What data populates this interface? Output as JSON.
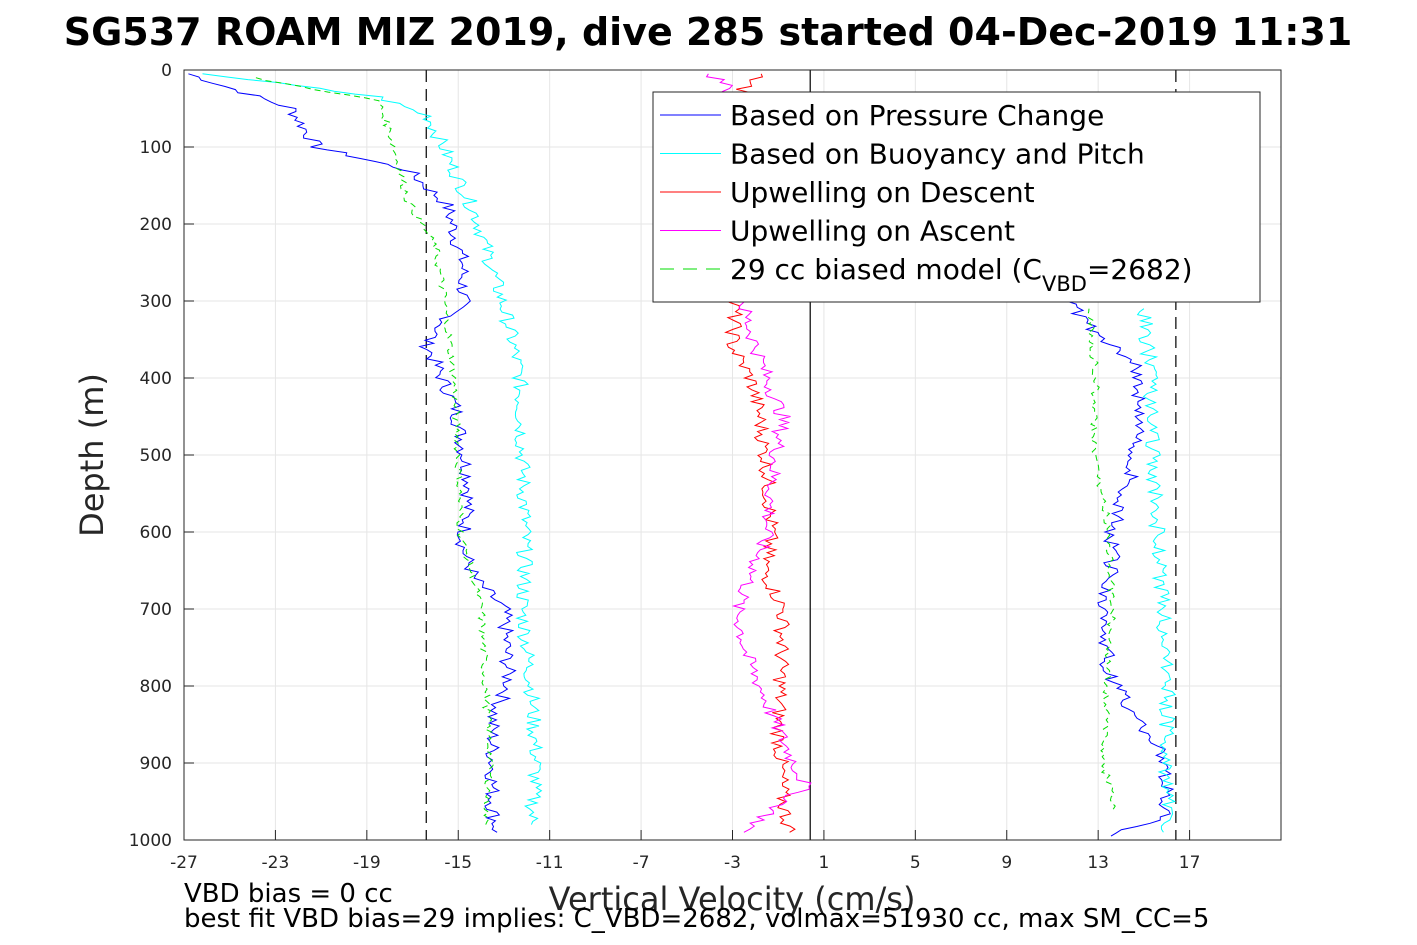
{
  "chart_data": {
    "type": "line",
    "title": "SG537 ROAM MIZ 2019, dive 285 started 04-Dec-2019 11:31",
    "xlabel": "Vertical Velocity (cm/s)",
    "ylabel": "Depth (m)",
    "xlim": [
      -27,
      21
    ],
    "ylim": [
      0,
      1000
    ],
    "y_reversed": true,
    "x_ticks": [
      "-27",
      "-23",
      "-19",
      "-15",
      "-11",
      "-7",
      "-3",
      "1",
      "5",
      "9",
      "13",
      "17"
    ],
    "y_ticks": [
      "0",
      "100",
      "200",
      "300",
      "400",
      "500",
      "600",
      "700",
      "800",
      "900",
      "1000"
    ],
    "grid": true,
    "legend_position": "top-right",
    "reference_lines": [
      {
        "x": -16.4,
        "style": "dashed",
        "color": "#000000"
      },
      {
        "x": 0.4,
        "style": "solid",
        "color": "#000000"
      },
      {
        "x": 16.4,
        "style": "dashed",
        "color": "#000000"
      }
    ],
    "series": [
      {
        "name": "Based on Pressure Change",
        "color": "#0000ff",
        "style": "solid",
        "descent": [
          [
            -26.8,
            5
          ],
          [
            -22.3,
            50
          ],
          [
            -21.2,
            100
          ],
          [
            -17.2,
            130
          ],
          [
            -15.5,
            175
          ],
          [
            -14.8,
            250
          ],
          [
            -14.8,
            300
          ],
          [
            -16.4,
            355
          ],
          [
            -15.1,
            440
          ],
          [
            -14.5,
            540
          ],
          [
            -14.8,
            620
          ],
          [
            -14.3,
            660
          ],
          [
            -13.0,
            700
          ],
          [
            -12.8,
            800
          ],
          [
            -13.5,
            840
          ],
          [
            -13.5,
            960
          ],
          [
            -13.3,
            990
          ]
        ],
        "ascent": [
          [
            13.4,
            995
          ],
          [
            15.8,
            970
          ],
          [
            16.0,
            950
          ],
          [
            15.8,
            890
          ],
          [
            14.4,
            830
          ],
          [
            13.4,
            780
          ],
          [
            13.3,
            700
          ],
          [
            13.6,
            640
          ],
          [
            13.6,
            600
          ],
          [
            14.5,
            520
          ],
          [
            14.8,
            450
          ],
          [
            14.7,
            380
          ],
          [
            13.1,
            345
          ],
          [
            11.6,
            300
          ]
        ]
      },
      {
        "name": "Based on Buoyancy and Pitch",
        "color": "#00ffff",
        "style": "solid",
        "descent": [
          [
            -26.0,
            5
          ],
          [
            -18.5,
            35
          ],
          [
            -16.3,
            60
          ],
          [
            -15.5,
            110
          ],
          [
            -14.2,
            190
          ],
          [
            -13.5,
            260
          ],
          [
            -12.8,
            330
          ],
          [
            -12.3,
            400
          ],
          [
            -12.2,
            500
          ],
          [
            -12.1,
            580
          ],
          [
            -12.1,
            650
          ],
          [
            -12.2,
            700
          ],
          [
            -11.8,
            800
          ],
          [
            -11.6,
            900
          ],
          [
            -11.8,
            980
          ]
        ],
        "ascent": [
          [
            16.0,
            990
          ],
          [
            16.1,
            950
          ],
          [
            15.9,
            900
          ],
          [
            16.0,
            850
          ],
          [
            16.1,
            780
          ],
          [
            15.8,
            700
          ],
          [
            15.6,
            600
          ],
          [
            15.4,
            500
          ],
          [
            15.3,
            400
          ],
          [
            15.0,
            310
          ]
        ]
      },
      {
        "name": "Upwelling on Descent",
        "color": "#ff0000",
        "style": "solid",
        "descent": [
          [
            -1.5,
            5
          ],
          [
            -2.5,
            25
          ],
          [
            -3.8,
            190
          ],
          [
            -2.9,
            310
          ],
          [
            -3.0,
            360
          ],
          [
            -2.2,
            400
          ],
          [
            -1.8,
            450
          ],
          [
            -1.5,
            520
          ],
          [
            -1.3,
            600
          ],
          [
            -1.6,
            650
          ],
          [
            -0.8,
            700
          ],
          [
            -0.9,
            800
          ],
          [
            -1.0,
            850
          ],
          [
            -0.8,
            950
          ],
          [
            -0.5,
            990
          ]
        ]
      },
      {
        "name": "Upwelling on Ascent",
        "color": "#ff00ff",
        "style": "solid",
        "ascent": [
          [
            -4.0,
            5
          ],
          [
            -3.2,
            20
          ],
          [
            -2.5,
            310
          ],
          [
            -2.2,
            340
          ],
          [
            -1.5,
            400
          ],
          [
            -0.8,
            450
          ],
          [
            -1.2,
            520
          ],
          [
            -1.5,
            600
          ],
          [
            -2.1,
            650
          ],
          [
            -2.8,
            700
          ],
          [
            -2.4,
            760
          ],
          [
            -1.8,
            800
          ],
          [
            -0.8,
            870
          ],
          [
            0.2,
            930
          ],
          [
            -2.5,
            990
          ]
        ]
      },
      {
        "name": "29 cc biased model (C_VBD=2682)",
        "color": "#00dd00",
        "style": "dashed",
        "descent": [
          [
            -24.0,
            10
          ],
          [
            -18.5,
            40
          ],
          [
            -18.0,
            80
          ],
          [
            -17.2,
            170
          ],
          [
            -16.0,
            230
          ],
          [
            -15.6,
            300
          ],
          [
            -15.2,
            400
          ],
          [
            -15.0,
            500
          ],
          [
            -14.9,
            600
          ],
          [
            -14.0,
            700
          ],
          [
            -13.8,
            800
          ],
          [
            -13.6,
            900
          ],
          [
            -13.8,
            980
          ]
        ],
        "ascent": [
          [
            13.8,
            960
          ],
          [
            13.2,
            900
          ],
          [
            13.4,
            800
          ],
          [
            13.6,
            700
          ],
          [
            13.5,
            600
          ],
          [
            12.8,
            500
          ],
          [
            12.9,
            400
          ],
          [
            12.6,
            310
          ]
        ]
      }
    ],
    "legend_entries": [
      {
        "text": "Based on Pressure Change"
      },
      {
        "text": "Based on Buoyancy and Pitch"
      },
      {
        "text": "Upwelling on Descent"
      },
      {
        "text": "Upwelling on Ascent"
      },
      {
        "text_main": "29 cc biased model (C",
        "text_sub": "VBD",
        "text_tail": "=2682)"
      }
    ],
    "annotations": [
      "VBD bias = 0 cc",
      "best fit VBD bias=29 implies: C_VBD=2682, volmax=51930 cc, max SM_CC=5"
    ]
  }
}
